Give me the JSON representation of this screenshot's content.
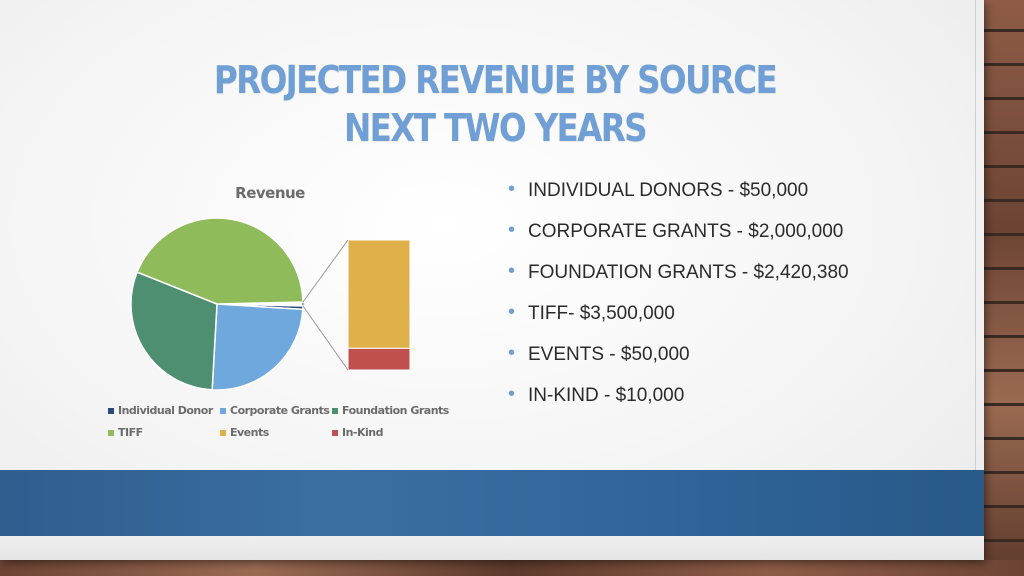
{
  "slide": {
    "title_line1": "PROJECTED REVENUE BY SOURCE",
    "title_line2": "NEXT TWO YEARS",
    "bullets": [
      "INDIVIDUAL DONORS - $50,000",
      "CORPORATE GRANTS - $2,000,000",
      "FOUNDATION GRANTS - $2,420,380",
      "TIFF- $3,500,000",
      "EVENTS - $50,000",
      "IN-KIND - $10,000"
    ]
  },
  "colors": {
    "title": "#6f9fd4",
    "band": "#2f5d8e"
  },
  "chart_data": {
    "type": "pie",
    "subtype": "pie-of-bar",
    "title": "Revenue",
    "categories": [
      "Individual Donor",
      "Corporate Grants",
      "Foundation Grants",
      "TIFF",
      "Events",
      "In-Kind"
    ],
    "values": [
      50000,
      2000000,
      2420380,
      3500000,
      50000,
      10000
    ],
    "colors": [
      "#2a4a7a",
      "#6fa8dc",
      "#4e8f72",
      "#8fbb5a",
      "#e0b04a",
      "#c0504d"
    ],
    "secondary_bar_categories": [
      "Events",
      "In-Kind"
    ],
    "legend": "bottom"
  }
}
